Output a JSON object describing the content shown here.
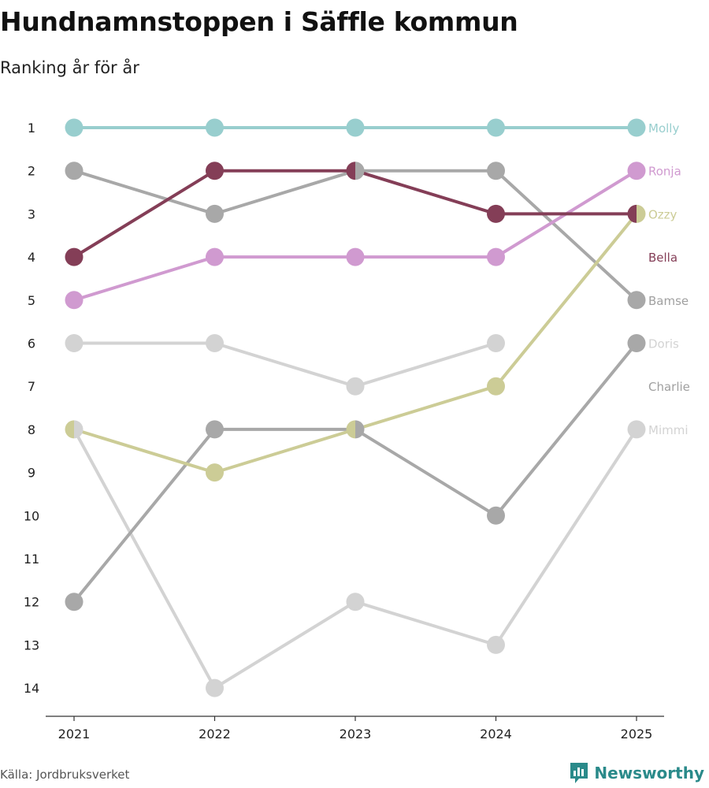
{
  "title": "Hundnamnstoppen i Säffle kommun",
  "subtitle": "Ranking år för år",
  "source": "Källa: Jordbruksverket",
  "brand": "Newsworthy",
  "chart_data": {
    "type": "line",
    "chart_kind": "bump",
    "x": [
      "2021",
      "2022",
      "2023",
      "2024",
      "2025"
    ],
    "y_ticks": [
      "1",
      "2",
      "3",
      "4",
      "5",
      "6",
      "7",
      "8",
      "9",
      "10",
      "11",
      "12",
      "13",
      "14"
    ],
    "ylim": [
      1,
      14
    ],
    "y_inverted": true,
    "series": [
      {
        "name": "Mimmi",
        "color": "#d3d3d3",
        "values": [
          8,
          14,
          12,
          13,
          8
        ]
      },
      {
        "name": "Charlie",
        "color": "#d3d3d3",
        "values": [
          6,
          6,
          7,
          6,
          null
        ]
      },
      {
        "name": "Doris",
        "color": "#a8a8a8",
        "values": [
          12,
          8,
          8,
          10,
          6
        ]
      },
      {
        "name": "Bamse",
        "color": "#a8a8a8",
        "values": [
          2,
          3,
          2,
          2,
          5
        ]
      },
      {
        "name": "Ozzy",
        "color": "#cccc96",
        "values": [
          8,
          9,
          8,
          7,
          3
        ]
      },
      {
        "name": "Ronja",
        "color": "#d09ad0",
        "values": [
          5,
          4,
          4,
          4,
          2
        ]
      },
      {
        "name": "Bella",
        "color": "#843e57",
        "values": [
          4,
          2,
          2,
          3,
          3
        ]
      },
      {
        "name": "Molly",
        "color": "#98cece",
        "values": [
          1,
          1,
          1,
          1,
          1
        ]
      }
    ],
    "label_order": [
      "Molly",
      "Ronja",
      "Ozzy",
      "Bella",
      "Bamse",
      "Doris",
      "Charlie",
      "Mimmi"
    ],
    "label_colors": {
      "Molly": "#98cece",
      "Ronja": "#d09ad0",
      "Ozzy": "#cccc96",
      "Bella": "#843e57",
      "Bamse": "#a0a0a0",
      "Doris": "#d3d3d3",
      "Charlie": "#a0a0a0",
      "Mimmi": "#d3d3d3"
    }
  }
}
